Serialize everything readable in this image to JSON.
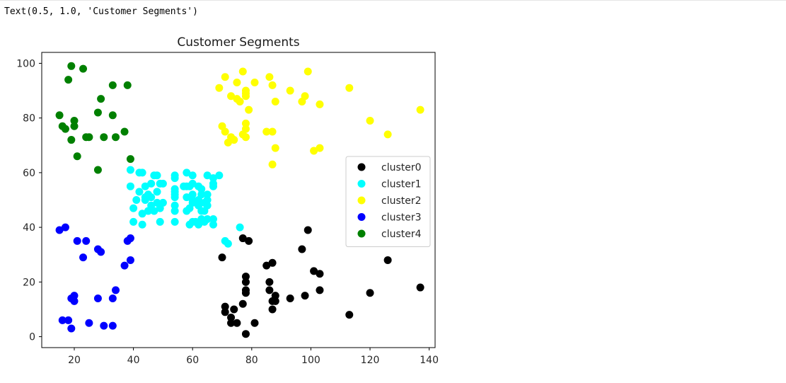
{
  "output_text": "Text(0.5, 1.0, 'Customer Segments')",
  "chart_data": {
    "type": "scatter",
    "title": "Customer Segments",
    "xlabel": "",
    "ylabel": "",
    "xlim": [
      9,
      142
    ],
    "ylim": [
      -4,
      104
    ],
    "xticks": [
      20,
      40,
      60,
      80,
      100,
      120,
      140
    ],
    "yticks": [
      0,
      20,
      40,
      60,
      80,
      100
    ],
    "grid": false,
    "legend_position": "center-right",
    "series": [
      {
        "name": "cluster0",
        "color": "#000000",
        "points": [
          [
            70,
            29
          ],
          [
            71,
            11
          ],
          [
            71,
            9
          ],
          [
            73,
            7
          ],
          [
            73,
            5
          ],
          [
            74,
            10
          ],
          [
            75,
            5
          ],
          [
            77,
            12
          ],
          [
            77,
            36
          ],
          [
            78,
            1
          ],
          [
            78,
            22
          ],
          [
            78,
            20
          ],
          [
            78,
            17
          ],
          [
            78,
            16
          ],
          [
            79,
            35
          ],
          [
            81,
            5
          ],
          [
            85,
            26
          ],
          [
            86,
            20
          ],
          [
            87,
            27
          ],
          [
            86,
            17
          ],
          [
            87,
            13
          ],
          [
            88,
            15
          ],
          [
            88,
            13
          ],
          [
            87,
            10
          ],
          [
            93,
            14
          ],
          [
            97,
            32
          ],
          [
            98,
            15
          ],
          [
            99,
            39
          ],
          [
            101,
            24
          ],
          [
            103,
            23
          ],
          [
            103,
            17
          ],
          [
            113,
            8
          ],
          [
            120,
            16
          ],
          [
            126,
            28
          ],
          [
            137,
            18
          ]
        ]
      },
      {
        "name": "cluster1",
        "color": "#00ffff",
        "points": [
          [
            39,
            61
          ],
          [
            39,
            55
          ],
          [
            40,
            47
          ],
          [
            40,
            42
          ],
          [
            41,
            50
          ],
          [
            42,
            53
          ],
          [
            42,
            60
          ],
          [
            43,
            60
          ],
          [
            43,
            45
          ],
          [
            43,
            41
          ],
          [
            44,
            50
          ],
          [
            44,
            51
          ],
          [
            44,
            55
          ],
          [
            45,
            46
          ],
          [
            45,
            52
          ],
          [
            46,
            56
          ],
          [
            46,
            51
          ],
          [
            46,
            48
          ],
          [
            47,
            46
          ],
          [
            47,
            59
          ],
          [
            48,
            53
          ],
          [
            48,
            59
          ],
          [
            48,
            49
          ],
          [
            49,
            56
          ],
          [
            49,
            42
          ],
          [
            49,
            47
          ],
          [
            50,
            56
          ],
          [
            50,
            49
          ],
          [
            54,
            48
          ],
          [
            54,
            54
          ],
          [
            54,
            53
          ],
          [
            54,
            52
          ],
          [
            54,
            58
          ],
          [
            54,
            59
          ],
          [
            54,
            51
          ],
          [
            54,
            46
          ],
          [
            54,
            42
          ],
          [
            57,
            55
          ],
          [
            58,
            55
          ],
          [
            58,
            60
          ],
          [
            58,
            51
          ],
          [
            58,
            46
          ],
          [
            59,
            55
          ],
          [
            59,
            47
          ],
          [
            59,
            41
          ],
          [
            60,
            50
          ],
          [
            60,
            42
          ],
          [
            60,
            49
          ],
          [
            60,
            56
          ],
          [
            60,
            52
          ],
          [
            60,
            59
          ],
          [
            61,
            42
          ],
          [
            62,
            55
          ],
          [
            62,
            41
          ],
          [
            62,
            48
          ],
          [
            62,
            50
          ],
          [
            63,
            43
          ],
          [
            63,
            52
          ],
          [
            63,
            54
          ],
          [
            63,
            46
          ],
          [
            64,
            42
          ],
          [
            64,
            49
          ],
          [
            64,
            46
          ],
          [
            65,
            52
          ],
          [
            65,
            50
          ],
          [
            65,
            43
          ],
          [
            65,
            59
          ],
          [
            65,
            48
          ],
          [
            67,
            55
          ],
          [
            67,
            43
          ],
          [
            67,
            56
          ],
          [
            67,
            58
          ],
          [
            67,
            41
          ],
          [
            69,
            59
          ],
          [
            71,
            35
          ],
          [
            72,
            34
          ],
          [
            76,
            40
          ]
        ]
      },
      {
        "name": "cluster2",
        "color": "#ffff00",
        "points": [
          [
            69,
            91
          ],
          [
            70,
            77
          ],
          [
            71,
            95
          ],
          [
            71,
            75
          ],
          [
            72,
            71
          ],
          [
            73,
            88
          ],
          [
            73,
            73
          ],
          [
            74,
            72
          ],
          [
            75,
            93
          ],
          [
            75,
            87
          ],
          [
            76,
            86
          ],
          [
            77,
            97
          ],
          [
            77,
            74
          ],
          [
            78,
            90
          ],
          [
            78,
            88
          ],
          [
            78,
            78
          ],
          [
            78,
            76
          ],
          [
            78,
            89
          ],
          [
            78,
            73
          ],
          [
            79,
            83
          ],
          [
            81,
            93
          ],
          [
            85,
            75
          ],
          [
            86,
            95
          ],
          [
            87,
            92
          ],
          [
            87,
            75
          ],
          [
            87,
            63
          ],
          [
            88,
            86
          ],
          [
            88,
            69
          ],
          [
            93,
            90
          ],
          [
            97,
            86
          ],
          [
            98,
            88
          ],
          [
            99,
            97
          ],
          [
            101,
            68
          ],
          [
            103,
            85
          ],
          [
            103,
            69
          ],
          [
            113,
            91
          ],
          [
            120,
            79
          ],
          [
            126,
            74
          ],
          [
            137,
            83
          ]
        ]
      },
      {
        "name": "cluster3",
        "color": "#0000ff",
        "points": [
          [
            15,
            39
          ],
          [
            16,
            6
          ],
          [
            17,
            40
          ],
          [
            18,
            6
          ],
          [
            19,
            3
          ],
          [
            19,
            14
          ],
          [
            20,
            15
          ],
          [
            20,
            13
          ],
          [
            21,
            35
          ],
          [
            23,
            29
          ],
          [
            24,
            35
          ],
          [
            25,
            5
          ],
          [
            28,
            14
          ],
          [
            28,
            32
          ],
          [
            29,
            31
          ],
          [
            30,
            4
          ],
          [
            33,
            4
          ],
          [
            33,
            14
          ],
          [
            34,
            17
          ],
          [
            37,
            26
          ],
          [
            38,
            35
          ],
          [
            39,
            36
          ],
          [
            39,
            28
          ]
        ]
      },
      {
        "name": "cluster4",
        "color": "#008000",
        "points": [
          [
            15,
            81
          ],
          [
            16,
            77
          ],
          [
            17,
            76
          ],
          [
            18,
            94
          ],
          [
            19,
            72
          ],
          [
            19,
            99
          ],
          [
            20,
            77
          ],
          [
            20,
            79
          ],
          [
            21,
            66
          ],
          [
            23,
            98
          ],
          [
            24,
            73
          ],
          [
            25,
            73
          ],
          [
            28,
            61
          ],
          [
            28,
            82
          ],
          [
            29,
            87
          ],
          [
            30,
            73
          ],
          [
            33,
            92
          ],
          [
            33,
            81
          ],
          [
            34,
            73
          ],
          [
            37,
            75
          ],
          [
            38,
            92
          ],
          [
            39,
            65
          ]
        ]
      }
    ]
  }
}
